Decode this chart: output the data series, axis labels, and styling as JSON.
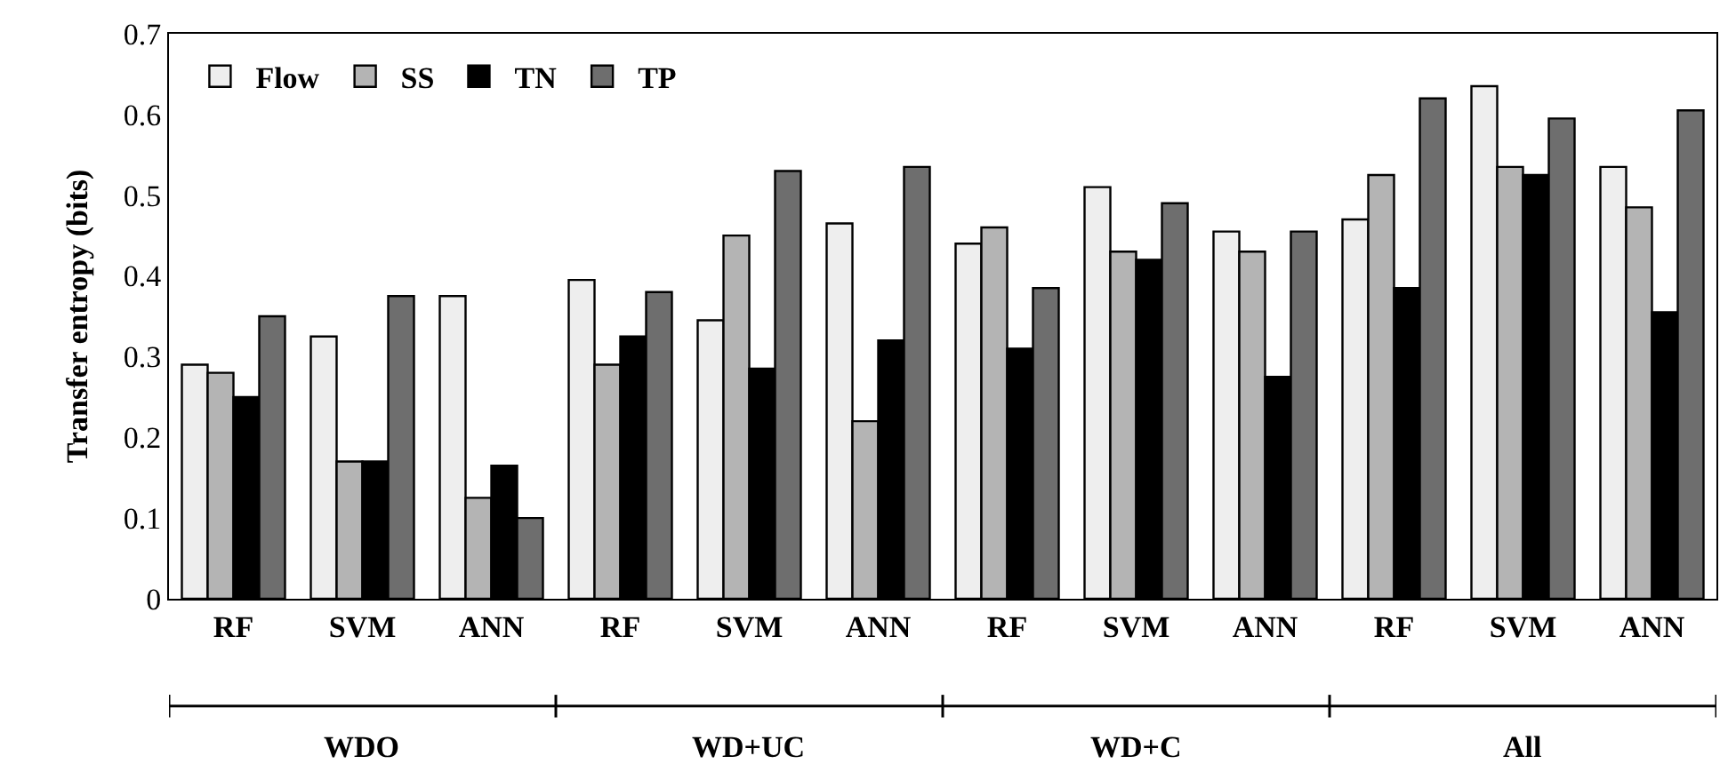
{
  "chart_data": {
    "type": "bar",
    "ylabel": "Transfer entropy (bits)",
    "categories": [
      "RF",
      "SVM",
      "ANN",
      "RF",
      "SVM",
      "ANN",
      "RF",
      "SVM",
      "ANN",
      "RF",
      "SVM",
      "ANN"
    ],
    "annotations": [
      "WDO",
      "WD+UC",
      "WD+C",
      "All"
    ],
    "series": [
      {
        "name": "Flow",
        "color": "#eeeeee",
        "values": [
          0.29,
          0.325,
          0.375,
          0.395,
          0.345,
          0.465,
          0.44,
          0.51,
          0.455,
          0.47,
          0.635,
          0.535
        ]
      },
      {
        "name": "SS",
        "color": "#b4b4b4",
        "values": [
          0.28,
          0.17,
          0.125,
          0.29,
          0.45,
          0.22,
          0.46,
          0.43,
          0.43,
          0.525,
          0.535,
          0.485
        ]
      },
      {
        "name": "TN",
        "color": "#000000",
        "values": [
          0.25,
          0.17,
          0.165,
          0.325,
          0.285,
          0.32,
          0.31,
          0.42,
          0.275,
          0.385,
          0.525,
          0.355
        ]
      },
      {
        "name": "TP",
        "color": "#6e6e6e",
        "values": [
          0.35,
          0.375,
          0.1,
          0.38,
          0.53,
          0.535,
          0.385,
          0.49,
          0.455,
          0.62,
          0.595,
          0.605
        ]
      }
    ],
    "ylim": [
      0,
      0.7
    ],
    "yticks": [
      0,
      0.1,
      0.2,
      0.3,
      0.4,
      0.5,
      0.6,
      0.7
    ],
    "legend": "top left"
  }
}
